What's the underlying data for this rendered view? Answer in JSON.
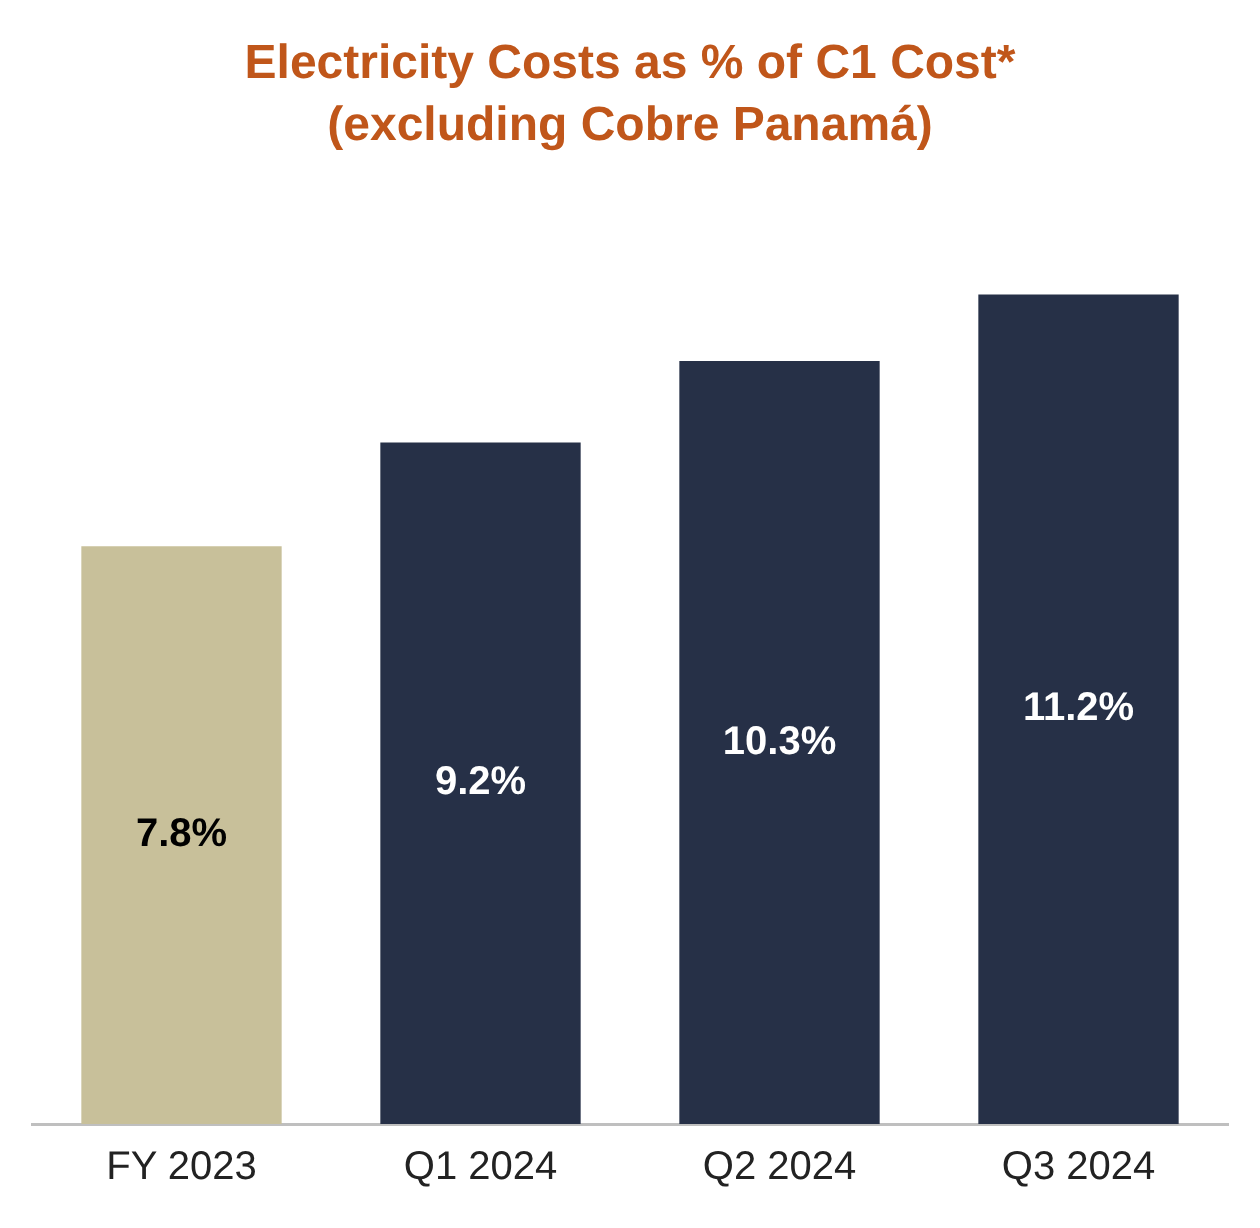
{
  "chart_data": {
    "type": "bar",
    "title": "Electricity Costs as % of C1 Cost*",
    "subtitle": "(excluding Cobre Panamá)",
    "categories": [
      "FY 2023",
      "Q1 2024",
      "Q2 2024",
      "Q3 2024"
    ],
    "values": [
      7.8,
      9.2,
      10.3,
      11.2
    ],
    "value_labels": [
      "7.8%",
      "9.2%",
      "10.3%",
      "11.2%"
    ],
    "colors": [
      "#c8c09a",
      "#263047",
      "#263047",
      "#263047"
    ],
    "grid": false,
    "legend": false
  }
}
